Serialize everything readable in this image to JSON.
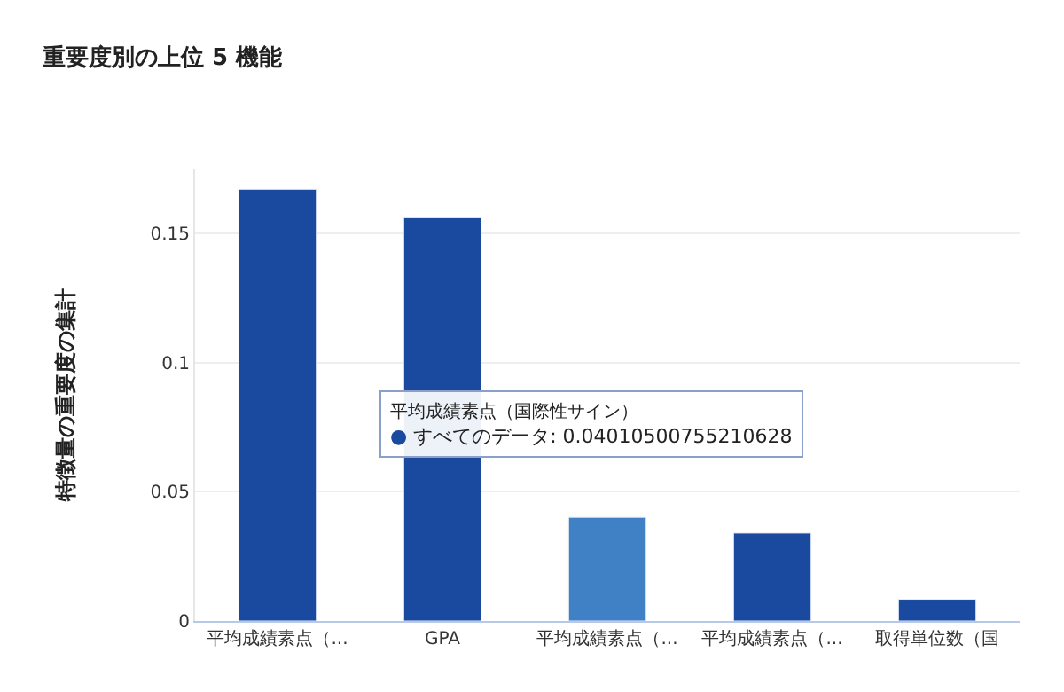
{
  "chart_data": {
    "type": "bar",
    "title": "重要度別の上位 5 機能",
    "ylabel": "特徴量の重要度の集計",
    "categories": [
      "平均成績素点（...",
      "GPA",
      "平均成績素点（...",
      "平均成績素点（...",
      "取得単位数（国"
    ],
    "values": [
      0.167,
      0.156,
      0.0401,
      0.034,
      0.0084
    ],
    "colors": [
      "#1a4aa0",
      "#1a4aa0",
      "#4080c4",
      "#1a4aa0",
      "#1a4aa0"
    ],
    "ylim": [
      0,
      0.175
    ],
    "yticks": [
      0,
      0.05,
      0.1,
      0.15
    ],
    "grid": "y",
    "annotations": [
      "平均成績素点（国際性サイン）\n● すべてのデータ: 0.04010500755210628"
    ]
  }
}
